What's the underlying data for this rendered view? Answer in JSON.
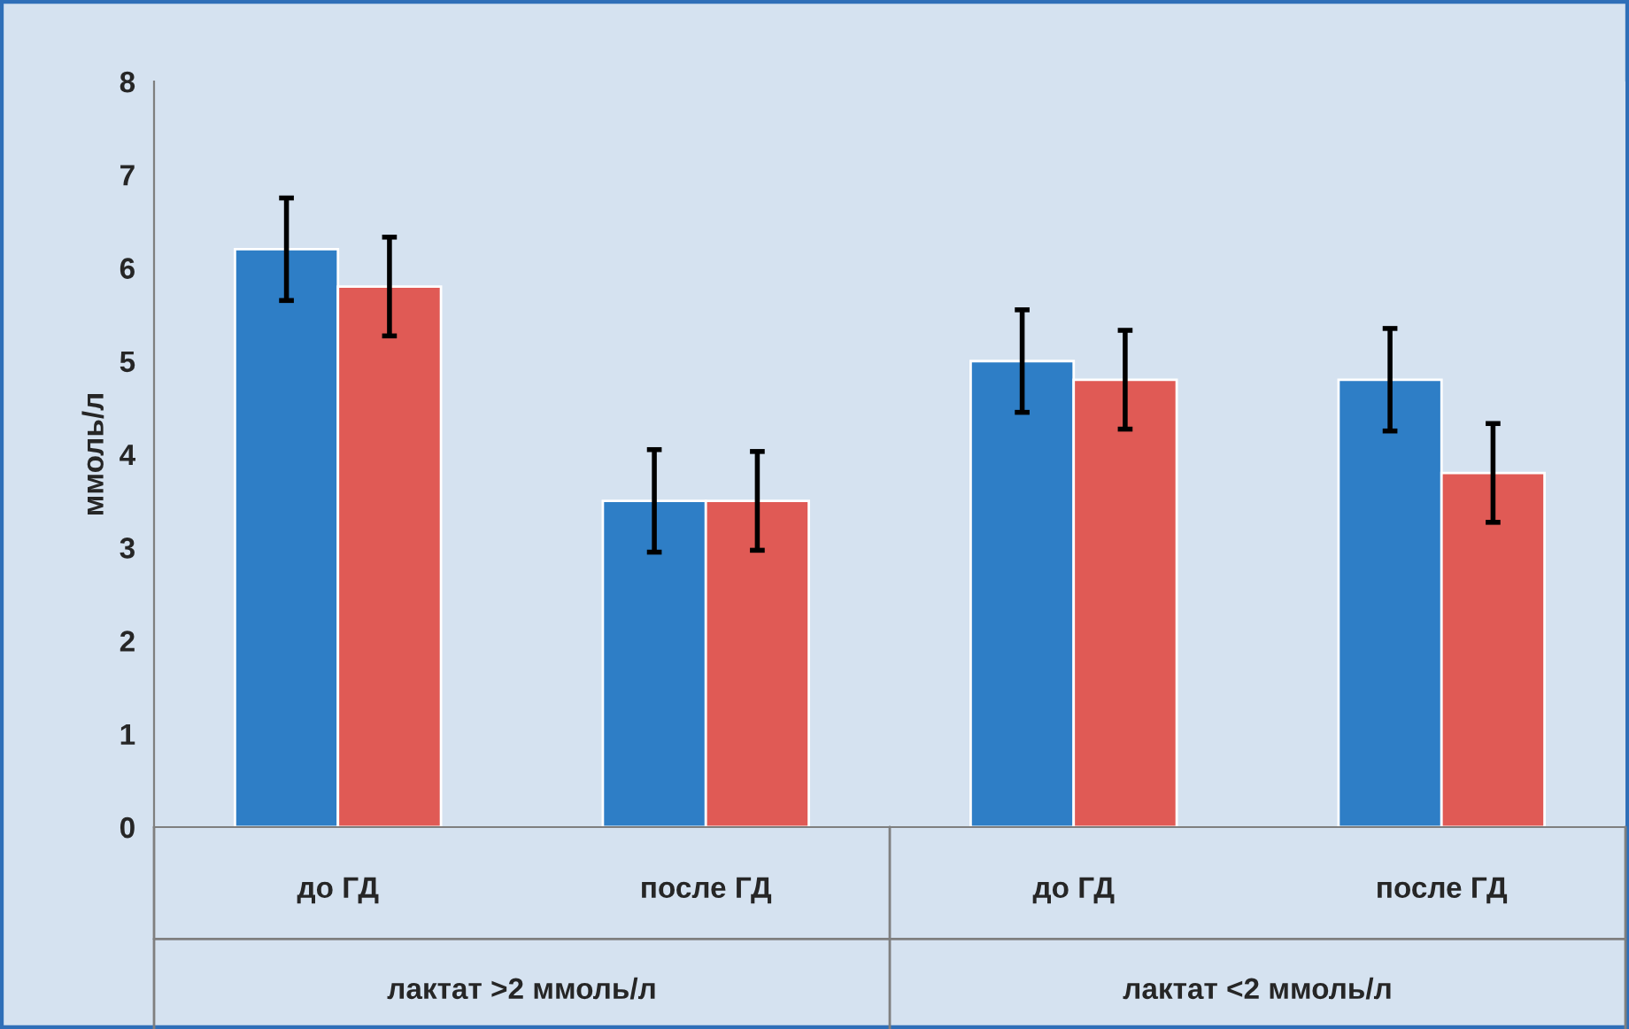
{
  "chart_data": {
    "type": "bar",
    "ylabel": "ммоль/л",
    "categories": [
      "до ГД",
      "после ГД",
      "до ГД",
      "после ГД"
    ],
    "series": [
      {
        "color": "#2e7ec6",
        "values": [
          6.2,
          3.5,
          5.0,
          4.8
        ],
        "errors": [
          0.55,
          0.55,
          0.55,
          0.55
        ]
      },
      {
        "color": "#e05a55",
        "values": [
          5.8,
          3.5,
          4.8,
          3.8
        ],
        "errors": [
          0.53,
          0.53,
          0.53,
          0.53
        ]
      }
    ],
    "annotations": [
      "лактат >2 ммоль/л",
      "лактат <2 ммоль/л"
    ],
    "ylim": [
      0,
      8
    ],
    "yticks": [
      0,
      1,
      2,
      3,
      4,
      5,
      6,
      7,
      8
    ],
    "grid": false,
    "legend": false
  }
}
